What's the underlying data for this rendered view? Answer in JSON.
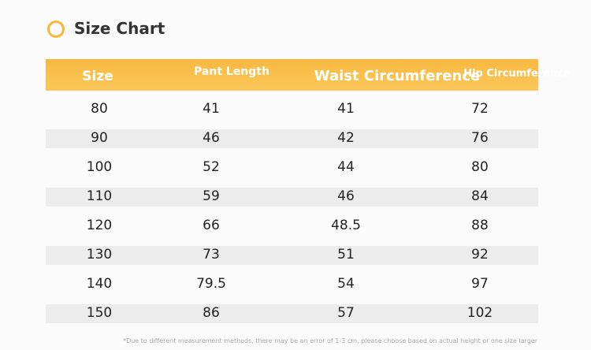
{
  "header": {
    "title": "Size Chart"
  },
  "table": {
    "columns": [
      "Size",
      "Pant Length",
      "Waist Circumference",
      "Hip Circumference"
    ],
    "rows": [
      [
        80,
        41,
        41,
        72
      ],
      [
        90,
        46,
        42,
        76
      ],
      [
        100,
        52,
        44,
        80
      ],
      [
        110,
        59,
        46,
        84
      ],
      [
        120,
        66,
        48.5,
        88
      ],
      [
        130,
        73,
        51,
        92
      ],
      [
        140,
        79.5,
        54,
        97
      ],
      [
        150,
        86,
        57,
        102
      ]
    ]
  },
  "footnote": "*Due to different measurement methods, there may be an error of 1-3 cm, please choose based on actual height or one size larger"
}
